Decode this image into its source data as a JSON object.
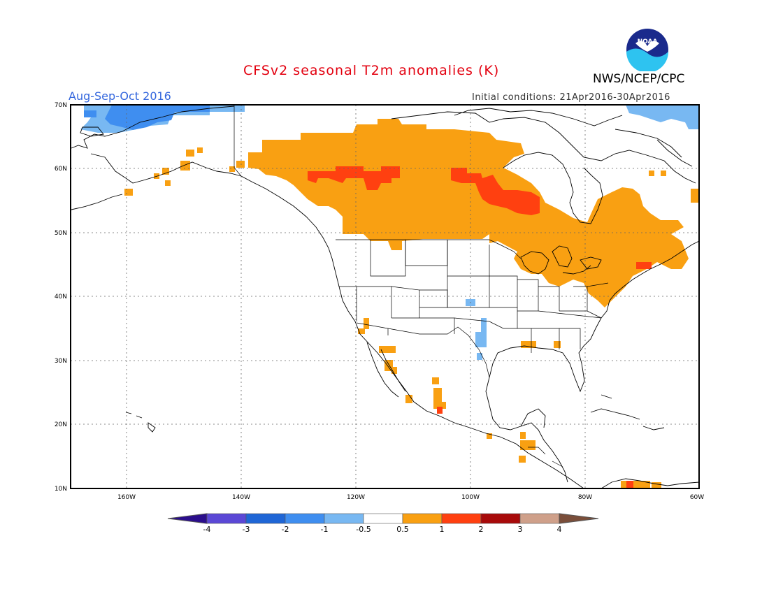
{
  "title": "CFSv2 seasonal T2m anomalies (K)",
  "organization": "NWS/NCEP/CPC",
  "logo_text": "NOAA",
  "season": "Aug-Sep-Oct 2016",
  "initial_conditions": "Initial conditions: 21Apr2016-30Apr2016",
  "lat_labels": [
    "70N",
    "60N",
    "50N",
    "40N",
    "30N",
    "20N",
    "10N"
  ],
  "lon_labels": [
    "160W",
    "140W",
    "120W",
    "100W",
    "80W",
    "60W"
  ],
  "colorbar": {
    "labels": [
      "-4",
      "-3",
      "-2",
      "-1",
      "-0.5",
      "0.5",
      "1",
      "2",
      "3",
      "4"
    ],
    "colors": [
      "#2b0e8c",
      "#5b48d6",
      "#1f66d6",
      "#3f8ef0",
      "#78b8f2",
      "#ffffff",
      "#f9a012",
      "#ff4010",
      "#a80a0a",
      "#cfa08a",
      "#7a4e3a"
    ]
  }
}
